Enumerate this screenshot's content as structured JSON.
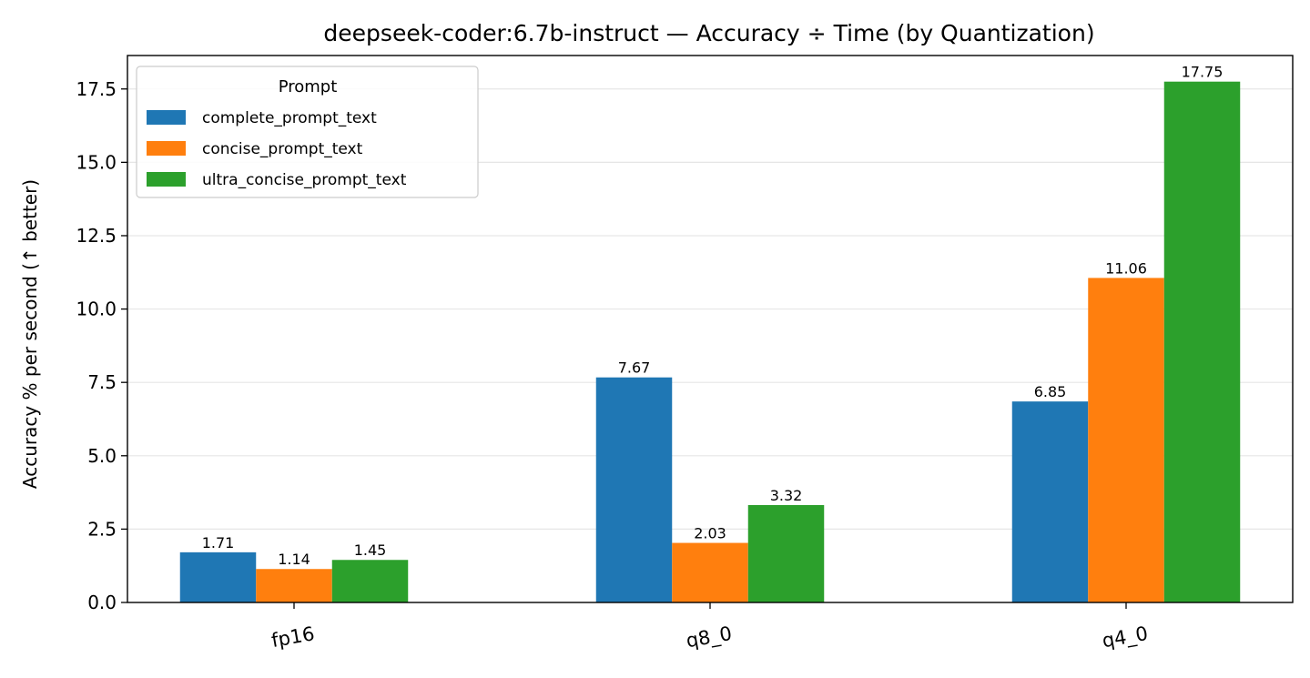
{
  "chart_data": {
    "type": "bar",
    "title": "deepseek-coder:6.7b-instruct — Accuracy ÷ Time (by Quantization)",
    "xlabel": "",
    "ylabel": "Accuracy % per second (↑ better)",
    "categories": [
      "fp16",
      "q8_0",
      "q4_0"
    ],
    "series": [
      {
        "name": "complete_prompt_text",
        "color": "#1f77b4",
        "values": [
          1.71,
          7.67,
          6.85
        ]
      },
      {
        "name": "concise_prompt_text",
        "color": "#ff7f0e",
        "values": [
          1.14,
          2.03,
          11.06
        ]
      },
      {
        "name": "ultra_concise_prompt_text",
        "color": "#2ca02c",
        "values": [
          1.45,
          3.32,
          17.75
        ]
      }
    ],
    "data_labels": [
      [
        "1.71",
        "7.67",
        "6.85"
      ],
      [
        "1.14",
        "2.03",
        "11.06"
      ],
      [
        "1.45",
        "3.32",
        "17.75"
      ]
    ],
    "ylim": [
      0,
      18.64
    ],
    "yticks": [
      0.0,
      2.5,
      5.0,
      7.5,
      10.0,
      12.5,
      15.0,
      17.5
    ],
    "ytick_labels": [
      "0.0",
      "2.5",
      "5.0",
      "7.5",
      "10.0",
      "12.5",
      "15.0",
      "17.5"
    ],
    "grid": "horizontal",
    "legend": {
      "title": "Prompt",
      "placement": "upper-left"
    }
  }
}
